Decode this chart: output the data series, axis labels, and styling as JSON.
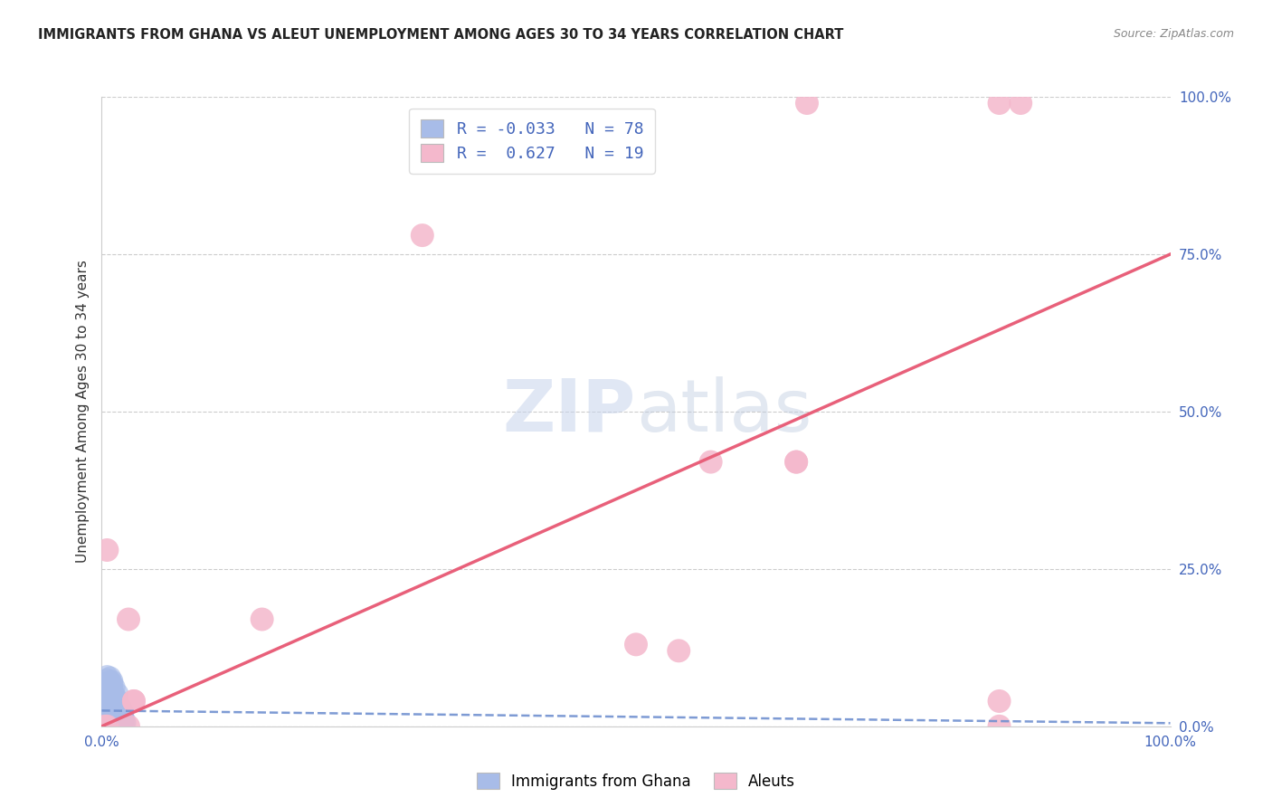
{
  "title": "IMMIGRANTS FROM GHANA VS ALEUT UNEMPLOYMENT AMONG AGES 30 TO 34 YEARS CORRELATION CHART",
  "source": "Source: ZipAtlas.com",
  "ylabel": "Unemployment Among Ages 30 to 34 years",
  "xlim": [
    0,
    1.0
  ],
  "ylim": [
    0,
    1.0
  ],
  "ytick_positions": [
    0.0,
    0.25,
    0.5,
    0.75,
    1.0
  ],
  "ytick_labels": [
    "0.0%",
    "25.0%",
    "50.0%",
    "75.0%",
    "100.0%"
  ],
  "blue_color": "#a8bce8",
  "pink_color": "#f4b8cc",
  "line_blue_color": "#7090d0",
  "line_pink_color": "#e8607a",
  "ghana_scatter_x": [
    0.005,
    0.008,
    0.006,
    0.01,
    0.012,
    0.015,
    0.018,
    0.02,
    0.022,
    0.01,
    0.008,
    0.012,
    0.015,
    0.018,
    0.005,
    0.008,
    0.01,
    0.012,
    0.015,
    0.018,
    0.02,
    0.006,
    0.008,
    0.01,
    0.012,
    0.015,
    0.018,
    0.02,
    0.022,
    0.005,
    0.008,
    0.01,
    0.012,
    0.015,
    0.018,
    0.02,
    0.005,
    0.008,
    0.01,
    0.012,
    0.015,
    0.018,
    0.005,
    0.008,
    0.01,
    0.012,
    0.015,
    0.018,
    0.02,
    0.005,
    0.008,
    0.01,
    0.012,
    0.015,
    0.018,
    0.02,
    0.005,
    0.008,
    0.01,
    0.012,
    0.005,
    0.008,
    0.01,
    0.012,
    0.015,
    0.005,
    0.008,
    0.01,
    0.005,
    0.008,
    0.005,
    0.008,
    0.01,
    0.012,
    0.015,
    0.005,
    0.008,
    0.01
  ],
  "ghana_scatter_y": [
    0.005,
    0.008,
    0.01,
    0.012,
    0.015,
    0.01,
    0.008,
    0.006,
    0.004,
    0.018,
    0.02,
    0.015,
    0.012,
    0.008,
    0.025,
    0.022,
    0.02,
    0.018,
    0.015,
    0.012,
    0.01,
    0.03,
    0.028,
    0.025,
    0.022,
    0.018,
    0.015,
    0.012,
    0.008,
    0.035,
    0.032,
    0.03,
    0.028,
    0.025,
    0.02,
    0.015,
    0.04,
    0.038,
    0.035,
    0.032,
    0.028,
    0.022,
    0.045,
    0.042,
    0.04,
    0.038,
    0.032,
    0.025,
    0.018,
    0.05,
    0.048,
    0.045,
    0.042,
    0.038,
    0.03,
    0.022,
    0.055,
    0.052,
    0.048,
    0.042,
    0.06,
    0.058,
    0.055,
    0.05,
    0.042,
    0.065,
    0.062,
    0.058,
    0.07,
    0.068,
    0.075,
    0.072,
    0.068,
    0.062,
    0.052,
    0.08,
    0.078,
    0.072
  ],
  "aleut_scatter_x": [
    0.005,
    0.025,
    0.025,
    0.15,
    0.3,
    0.54,
    0.57,
    0.65,
    0.66,
    0.84,
    0.86,
    0.84,
    0.5,
    0.03,
    0.84,
    0.03,
    0.005,
    0.65,
    0.003
  ],
  "aleut_scatter_y": [
    0.28,
    0.17,
    0.0,
    0.17,
    0.78,
    0.12,
    0.42,
    0.42,
    0.99,
    0.99,
    0.99,
    0.0,
    0.13,
    0.04,
    0.04,
    0.04,
    0.0,
    0.42,
    0.0
  ],
  "ghana_trend_x": [
    0.0,
    1.0
  ],
  "ghana_trend_y": [
    0.025,
    0.005
  ],
  "aleut_trend_x": [
    0.0,
    1.0
  ],
  "aleut_trend_y": [
    0.0,
    0.75
  ],
  "watermark_zip": "ZIP",
  "watermark_atlas": "atlas",
  "legend_text1": "R = -0.033   N = 78",
  "legend_text2": "R =  0.627   N = 19"
}
